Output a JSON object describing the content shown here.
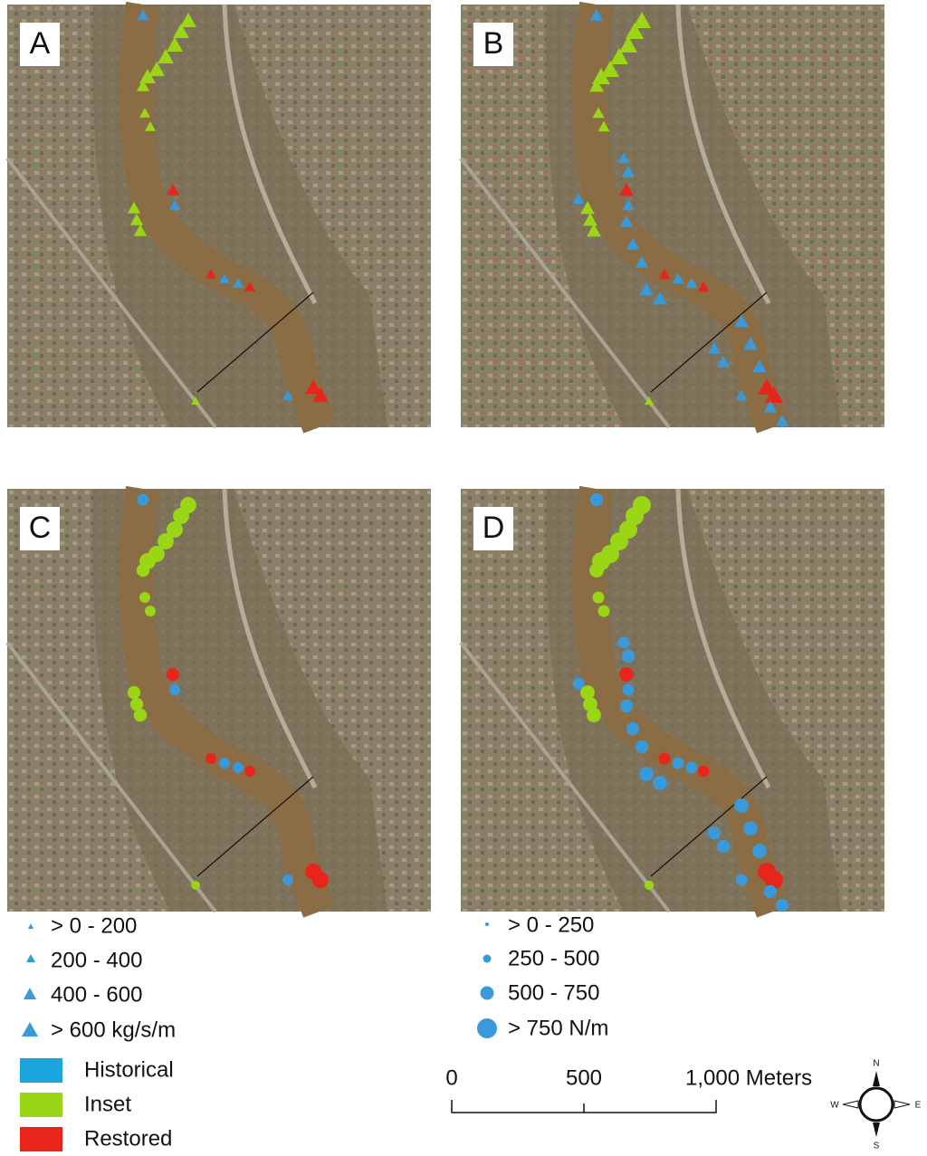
{
  "panels": [
    {
      "label": "A"
    },
    {
      "label": "B"
    },
    {
      "label": "C"
    },
    {
      "label": "D"
    }
  ],
  "legend_discharge": {
    "items": [
      "> 0 - 200",
      "200 - 400",
      "400 - 600",
      "> 600 kg/s/m"
    ]
  },
  "legend_power": {
    "items": [
      "> 0 - 250",
      "250 - 500",
      "500 - 750",
      "> 750 N/m"
    ]
  },
  "legend_class": {
    "items": [
      "Historical",
      "Inset",
      "Restored"
    ]
  },
  "scale_bar": {
    "labels": [
      "0",
      "500",
      "1,000 Meters"
    ]
  },
  "compass": {
    "north": "N",
    "east": "E",
    "south": "S",
    "west": "W"
  }
}
